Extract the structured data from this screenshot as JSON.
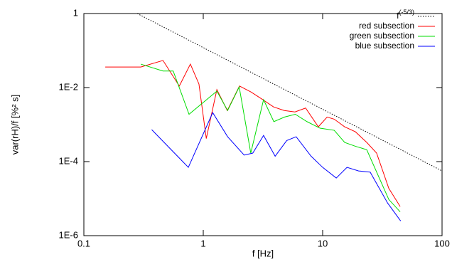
{
  "chart_data": {
    "type": "line",
    "xlabel": "f [Hz]",
    "ylabel": "var(rH)/f [%² s]",
    "xscale": "log",
    "yscale": "log",
    "xlim": [
      0.1,
      100
    ],
    "ylim": [
      1e-06,
      1
    ],
    "xticks": [
      0.1,
      1,
      10,
      100
    ],
    "yticks": [
      {
        "value": 1e-06,
        "label": "1E-6"
      },
      {
        "value": 0.0001,
        "label": "1E-4"
      },
      {
        "value": 0.01,
        "label": "1E-2"
      },
      1
    ],
    "legend": "upper right",
    "series": [
      {
        "name": "f",
        "name_superscript": "(-5/3)",
        "color": "#000000",
        "dash": "dotted",
        "x": [
          0.28,
          100
        ],
        "values": [
          1,
          5.6e-05
        ]
      },
      {
        "name": "red subsection",
        "color": "#ff0000",
        "x": [
          0.151,
          0.3,
          0.46,
          0.63,
          0.78,
          0.92,
          1.06,
          1.3,
          1.59,
          2.01,
          2.51,
          3.16,
          3.88,
          4.77,
          5.86,
          7.2,
          9.2,
          10.9,
          12.5,
          15.3,
          18.8,
          23.4,
          28.3,
          35.8,
          44.6
        ],
        "values": [
          0.036,
          0.036,
          0.054,
          0.011,
          0.043,
          0.0125,
          0.00042,
          0.0088,
          0.0024,
          0.011,
          0.0076,
          0.0047,
          0.003,
          0.0024,
          0.0022,
          0.0028,
          0.00087,
          0.0016,
          0.0014,
          0.00087,
          0.00064,
          0.00033,
          0.00017,
          1.9e-05,
          6.1e-06
        ]
      },
      {
        "name": "green subsection",
        "color": "#00dd00",
        "x": [
          0.3,
          0.46,
          0.56,
          0.76,
          1.3,
          1.6,
          2.0,
          2.5,
          3.2,
          3.9,
          4.8,
          5.9,
          7.4,
          9.5,
          12.5,
          15.3,
          18.8,
          23.4,
          35.8,
          44.6
        ],
        "values": [
          0.043,
          0.028,
          0.028,
          0.0019,
          0.008,
          0.0024,
          0.0104,
          0.00017,
          0.0047,
          0.0012,
          0.0016,
          0.0019,
          0.0012,
          0.0008,
          0.0007,
          0.00033,
          0.00026,
          0.00021,
          9.5e-06,
          4.4e-06
        ]
      },
      {
        "name": "blue subsection",
        "color": "#0000ff",
        "x": [
          0.37,
          0.75,
          1.2,
          1.6,
          2.2,
          2.6,
          3.2,
          4,
          5,
          6,
          8,
          10,
          13,
          16,
          20,
          25,
          35,
          45
        ],
        "values": [
          0.00073,
          7e-05,
          0.0021,
          0.00047,
          0.00015,
          0.00017,
          0.00051,
          0.00014,
          0.00037,
          0.00047,
          0.00014,
          7e-05,
          3.6e-05,
          7e-05,
          5.6e-05,
          5.2e-05,
          7.6e-06,
          2.5e-06
        ]
      }
    ]
  }
}
